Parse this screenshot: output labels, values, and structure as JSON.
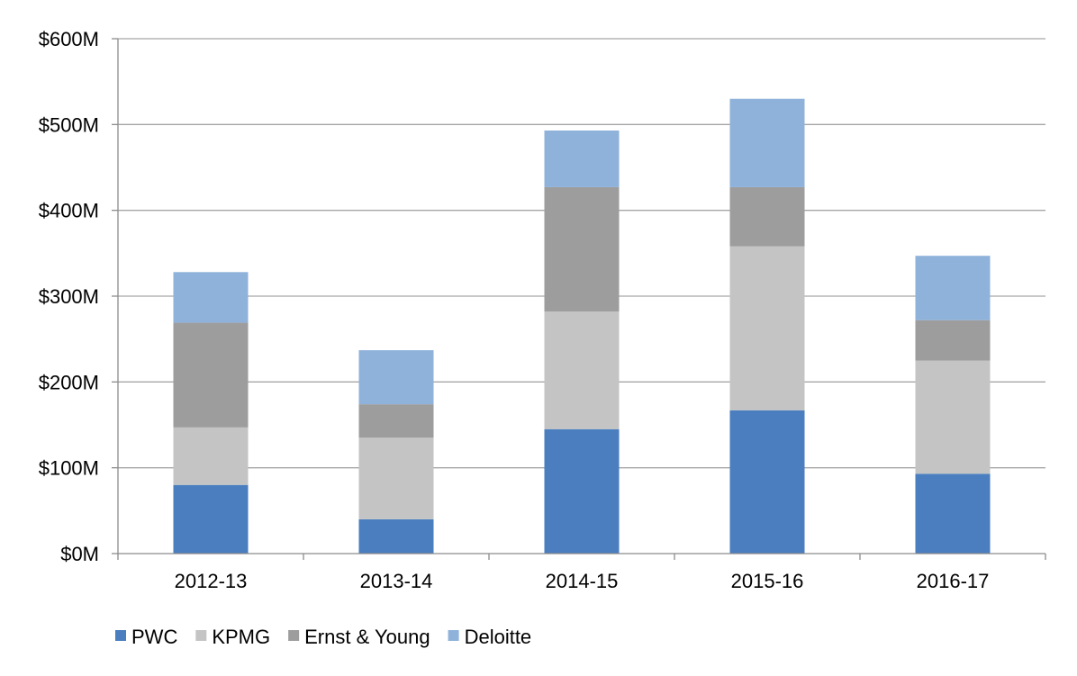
{
  "chart_data": {
    "type": "bar",
    "stacked": true,
    "title": "",
    "xlabel": "",
    "ylabel": "",
    "categories": [
      "2012-13",
      "2013-14",
      "2014-15",
      "2015-16",
      "2016-17"
    ],
    "series": [
      {
        "name": "PWC",
        "color": "#4a7ebf",
        "values": [
          80,
          40,
          145,
          167,
          93
        ]
      },
      {
        "name": "KPMG",
        "color": "#c4c4c4",
        "values": [
          67,
          95,
          137,
          191,
          132
        ]
      },
      {
        "name": "Ernst & Young",
        "color": "#9d9d9d",
        "values": [
          122,
          39,
          145,
          69,
          47
        ]
      },
      {
        "name": "Deloitte",
        "color": "#8fb2da",
        "values": [
          59,
          63,
          66,
          103,
          75
        ]
      }
    ],
    "ylim": [
      0,
      600
    ],
    "yticks": [
      0,
      100,
      200,
      300,
      400,
      500,
      600
    ],
    "ytick_labels": [
      "$0M",
      "$100M",
      "$200M",
      "$300M",
      "$400M",
      "$500M",
      "$600M"
    ],
    "grid": true,
    "legend_position": "bottom-left"
  }
}
